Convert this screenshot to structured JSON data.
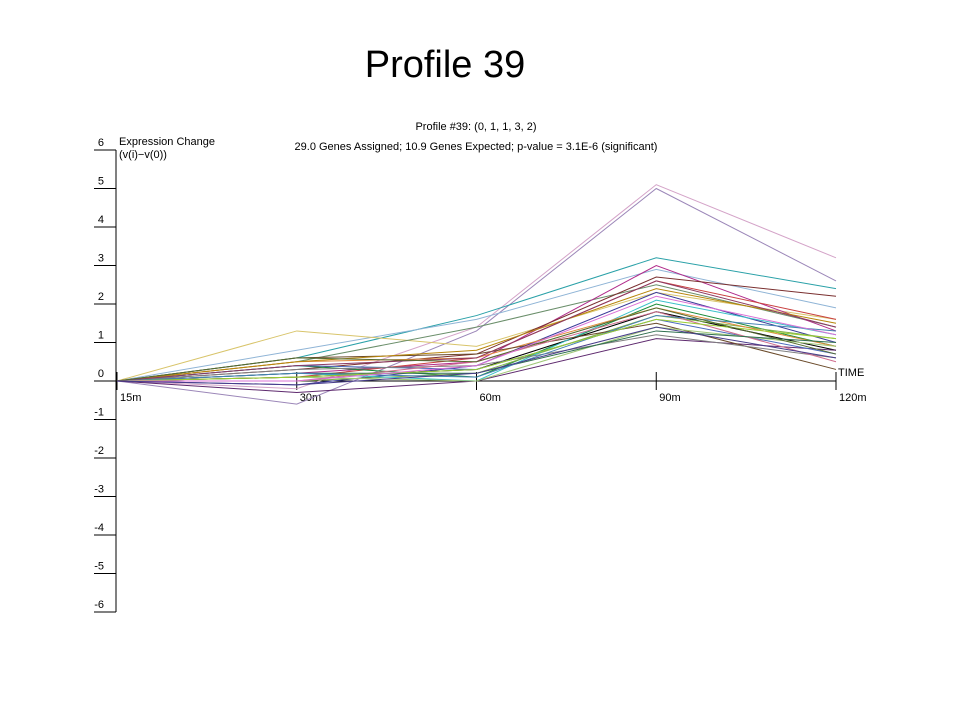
{
  "slide": {
    "title": "Profile 39"
  },
  "chart_data": {
    "type": "line",
    "title": "Profile #39: (0, 1, 1, 3, 2)",
    "subtitle": "29.0 Genes Assigned; 10.9 Genes Expected; p-value = 3.1E-6 (significant)",
    "ylabel_line1": "Expression Change",
    "ylabel_line2": "(v(i)−v(0))",
    "xlabel": "TIME",
    "categories": [
      "15m",
      "30m",
      "60m",
      "90m",
      "120m"
    ],
    "yticks": [
      "6",
      "5",
      "4",
      "3",
      "2",
      "1",
      "0",
      "-1",
      "-2",
      "-3",
      "-4",
      "-5",
      "-6"
    ],
    "ylim": [
      -6,
      6
    ],
    "grid": false,
    "series": [
      {
        "color": "#d4a3c8",
        "values": [
          0,
          -0.2,
          1.4,
          5.1,
          3.2
        ]
      },
      {
        "color": "#9b86b8",
        "values": [
          0,
          -0.6,
          1.3,
          5.0,
          2.6
        ]
      },
      {
        "color": "#2aa1a8",
        "values": [
          0,
          0.6,
          1.7,
          3.2,
          2.4
        ]
      },
      {
        "color": "#8fb4d6",
        "values": [
          0,
          0.8,
          1.6,
          2.9,
          1.9
        ]
      },
      {
        "color": "#d8c46a",
        "values": [
          0,
          1.3,
          0.9,
          2.3,
          1.6
        ]
      },
      {
        "color": "#6a8e6a",
        "values": [
          0,
          0.5,
          1.4,
          2.5,
          1.4
        ]
      },
      {
        "color": "#b02a8a",
        "values": [
          0,
          0.2,
          0.5,
          3.0,
          1.3
        ]
      },
      {
        "color": "#7a2f2f",
        "values": [
          0,
          0.3,
          0.7,
          2.7,
          2.2
        ]
      },
      {
        "color": "#c94040",
        "values": [
          0,
          0.1,
          0.6,
          2.6,
          1.6
        ]
      },
      {
        "color": "#3b3b9a",
        "values": [
          0,
          -0.1,
          0.4,
          2.3,
          1.0
        ]
      },
      {
        "color": "#1a8c3a",
        "values": [
          0,
          0.4,
          0.1,
          2.0,
          0.9
        ]
      },
      {
        "color": "#000000",
        "values": [
          0,
          0.1,
          0.3,
          1.8,
          0.8
        ]
      },
      {
        "color": "#7fb04a",
        "values": [
          0,
          0.0,
          0.2,
          1.7,
          1.1
        ]
      },
      {
        "color": "#39c0c8",
        "values": [
          0,
          0.2,
          0.0,
          2.1,
          1.2
        ]
      },
      {
        "color": "#e08a3a",
        "values": [
          0,
          0.5,
          0.6,
          1.9,
          0.9
        ]
      },
      {
        "color": "#5e2a6e",
        "values": [
          0,
          -0.3,
          0.0,
          1.1,
          0.8
        ]
      },
      {
        "color": "#6a4a2a",
        "values": [
          0,
          0.6,
          0.7,
          1.5,
          0.3
        ]
      },
      {
        "color": "#4b6bbd",
        "values": [
          0,
          0.4,
          0.3,
          1.6,
          0.7
        ]
      },
      {
        "color": "#a0c878",
        "values": [
          0,
          0.1,
          0.0,
          1.4,
          0.9
        ]
      },
      {
        "color": "#808080",
        "values": [
          0,
          0.3,
          0.4,
          1.2,
          0.6
        ]
      },
      {
        "color": "#cf6d8d",
        "values": [
          0,
          0.0,
          0.5,
          1.8,
          0.5
        ]
      },
      {
        "color": "#2f6f4f",
        "values": [
          0,
          0.2,
          0.2,
          1.3,
          1.0
        ]
      },
      {
        "color": "#b8860b",
        "values": [
          0,
          0.5,
          0.8,
          2.4,
          1.5
        ]
      },
      {
        "color": "#8b3a62",
        "values": [
          0,
          0.4,
          0.6,
          2.6,
          1.4
        ]
      },
      {
        "color": "#4682b4",
        "values": [
          0,
          0.2,
          0.1,
          1.7,
          1.3
        ]
      },
      {
        "color": "#9acd32",
        "values": [
          0,
          0.1,
          0.3,
          1.6,
          1.1
        ]
      },
      {
        "color": "#556b2f",
        "values": [
          0,
          0.6,
          0.5,
          1.9,
          0.7
        ]
      },
      {
        "color": "#da70d6",
        "values": [
          0,
          0.0,
          0.4,
          2.2,
          1.2
        ]
      },
      {
        "color": "#483d8b",
        "values": [
          0,
          -0.1,
          0.2,
          1.4,
          0.6
        ]
      }
    ]
  }
}
